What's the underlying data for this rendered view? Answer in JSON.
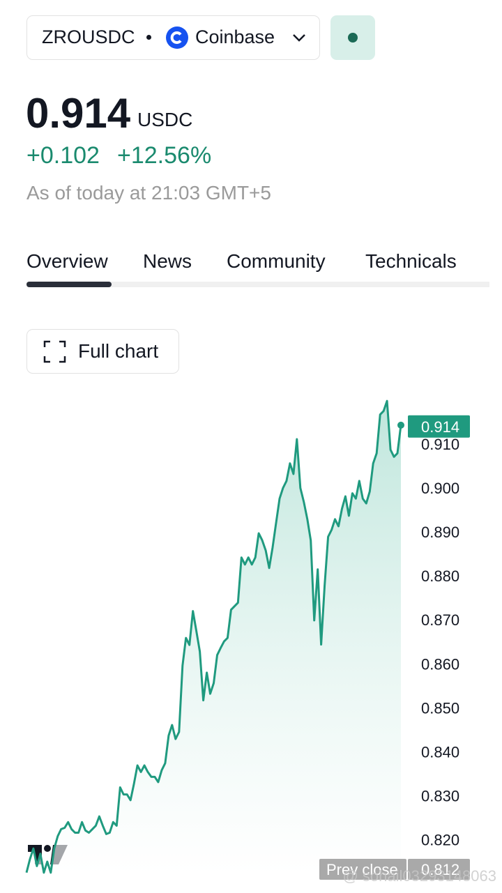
{
  "header": {
    "symbol": "ZROUSDC",
    "exchange": "Coinbase"
  },
  "quote": {
    "price": "0.914",
    "currency": "USDC",
    "change": "+0.102",
    "change_percent": "+12.56%",
    "as_of": "As of today at 21:03 GMT+5"
  },
  "tabs": [
    "Overview",
    "News",
    "Community",
    "Technicals"
  ],
  "full_chart_button": "Full chart",
  "watermark": "@ sohail03293148063",
  "chart_data": {
    "type": "area",
    "color": "#1f9a7f",
    "values": [
      0.8125,
      0.8156,
      0.818,
      0.814,
      0.8168,
      0.8125,
      0.815,
      0.8125,
      0.818,
      0.8208,
      0.8224,
      0.8227,
      0.824,
      0.8224,
      0.8216,
      0.8216,
      0.824,
      0.8221,
      0.8216,
      0.8224,
      0.8232,
      0.8253,
      0.8232,
      0.8213,
      0.8216,
      0.824,
      0.8232,
      0.8319,
      0.8303,
      0.8303,
      0.829,
      0.8327,
      0.8369,
      0.8354,
      0.8369,
      0.8354,
      0.8343,
      0.8343,
      0.8331,
      0.8358,
      0.8374,
      0.8437,
      0.8461,
      0.8429,
      0.8445,
      0.8596,
      0.8659,
      0.8643,
      0.872,
      0.8675,
      0.8628,
      0.8517,
      0.858,
      0.8532,
      0.8556,
      0.862,
      0.8636,
      0.8651,
      0.8659,
      0.8723,
      0.8731,
      0.8739,
      0.8842,
      0.8826,
      0.8842,
      0.8826,
      0.8842,
      0.8897,
      0.8881,
      0.8858,
      0.8818,
      0.8865,
      0.8921,
      0.8976,
      0.9,
      0.9016,
      0.9056,
      0.9032,
      0.9111,
      0.9,
      0.8968,
      0.8929,
      0.8881,
      0.8699,
      0.8815,
      0.8644,
      0.8778,
      0.8889,
      0.8905,
      0.8929,
      0.8913,
      0.8953,
      0.8981,
      0.8937,
      0.8988,
      0.8976,
      0.9016,
      0.8976,
      0.8965,
      0.8992,
      0.9056,
      0.9079,
      0.9167,
      0.9175,
      0.9198,
      0.9087,
      0.9071,
      0.9079,
      0.9143
    ],
    "ylim": [
      0.812,
      0.922
    ],
    "yticks": [
      {
        "value": 0.82,
        "label": "0.820"
      },
      {
        "value": 0.83,
        "label": "0.830"
      },
      {
        "value": 0.84,
        "label": "0.840"
      },
      {
        "value": 0.85,
        "label": "0.850"
      },
      {
        "value": 0.86,
        "label": "0.860"
      },
      {
        "value": 0.87,
        "label": "0.870"
      },
      {
        "value": 0.88,
        "label": "0.880"
      },
      {
        "value": 0.89,
        "label": "0.890"
      },
      {
        "value": 0.9,
        "label": "0.900"
      },
      {
        "value": 0.91,
        "label": "0.910"
      }
    ],
    "last_price": 0.914,
    "prev_close": {
      "label": "Prev close",
      "value": 0.812
    }
  }
}
